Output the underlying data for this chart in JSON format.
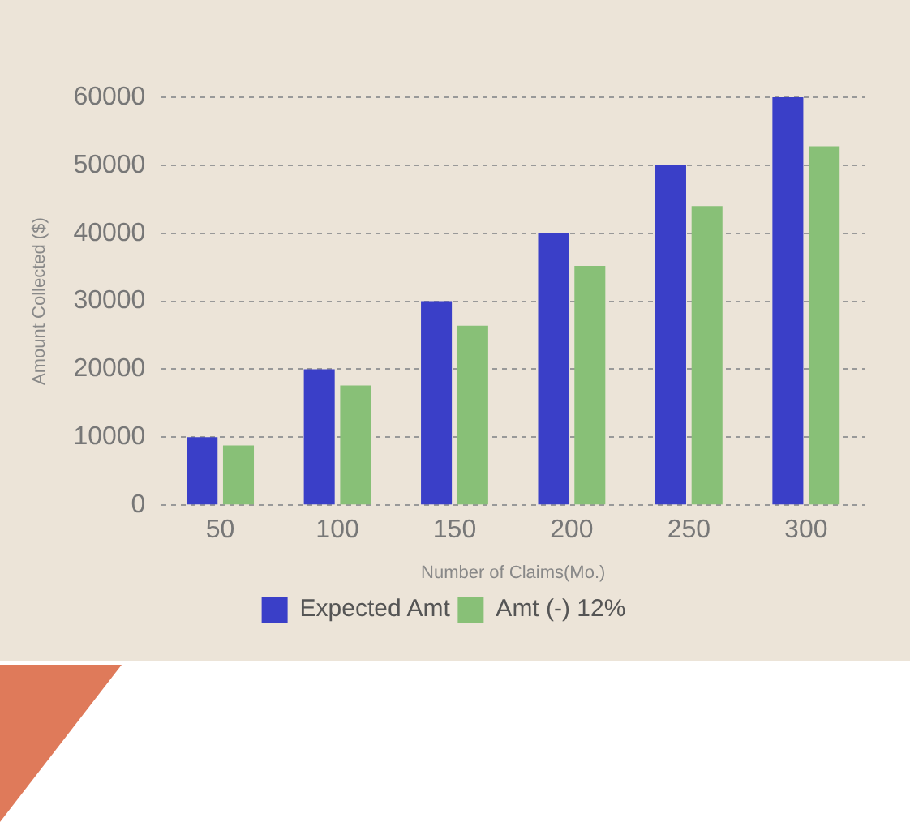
{
  "chart_data": {
    "type": "bar",
    "xlabel": "Number of Claims(Mo.)",
    "ylabel": "Amount Collected ($)",
    "categories": [
      "50",
      "100",
      "150",
      "200",
      "250",
      "300"
    ],
    "series": [
      {
        "name": "Expected Amt",
        "color": "#3a3fc8",
        "values": [
          10000,
          20000,
          30000,
          40000,
          50000,
          60000
        ]
      },
      {
        "name": "Amt (-) 12%",
        "color": "#88c077",
        "values": [
          8800,
          17600,
          26400,
          35200,
          44000,
          52800
        ]
      }
    ],
    "ylim": [
      0,
      60000
    ],
    "yticks": [
      0,
      10000,
      20000,
      30000,
      40000,
      50000,
      60000
    ],
    "grid": "y",
    "legend": "bottom"
  }
}
